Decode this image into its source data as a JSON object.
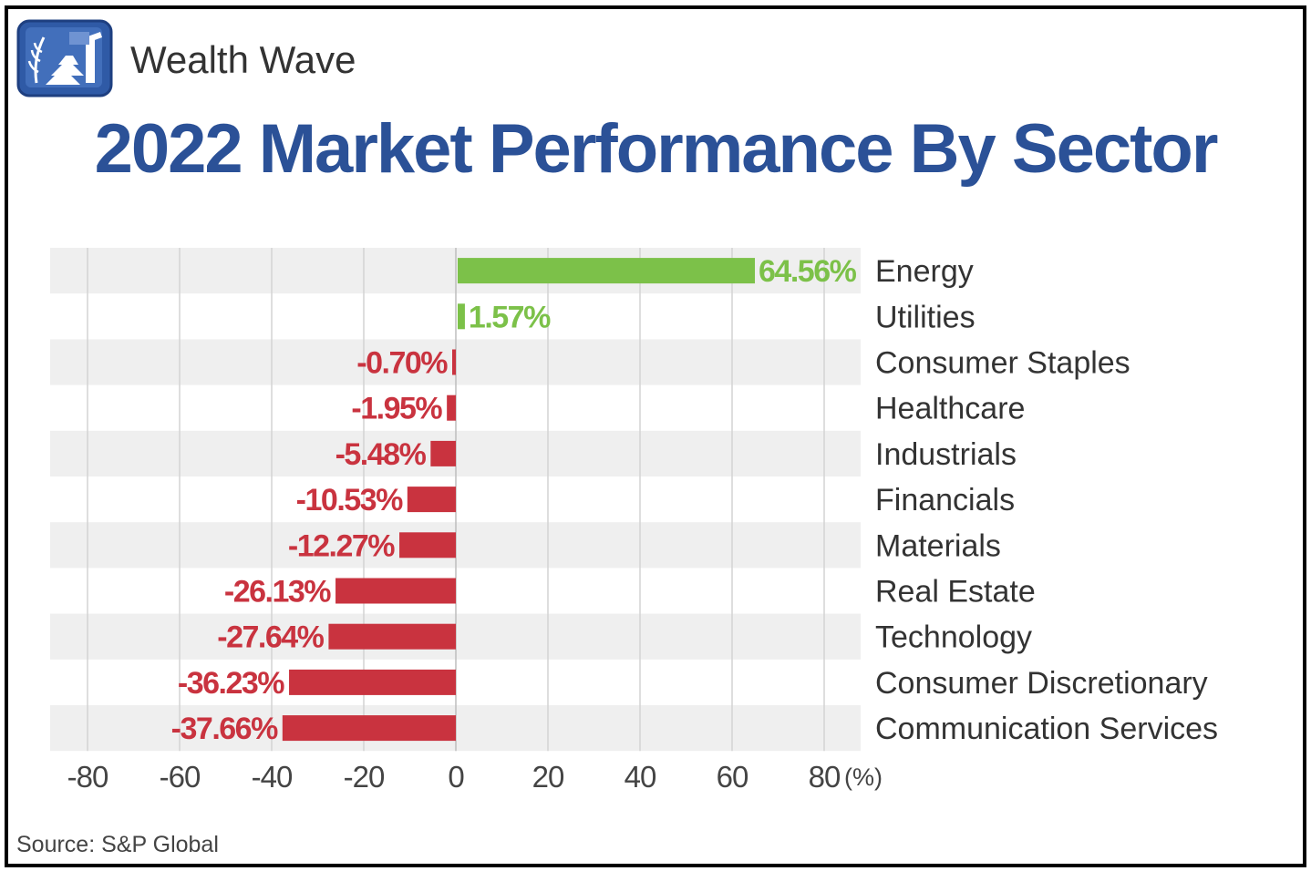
{
  "header": {
    "brand": "Wealth Wave",
    "logo_icon": "wealth-wave-logo-icon",
    "title": "2022 Market Performance By Sector"
  },
  "footer": {
    "source": "Source: S&P Global"
  },
  "colors": {
    "positive": "#7cc149",
    "negative": "#c9333f",
    "title": "#2b5197",
    "stripe": "#efefef",
    "grid": "#d4d4d4"
  },
  "chart_data": {
    "type": "bar",
    "orientation": "horizontal",
    "categories": [
      "Energy",
      "Utilities",
      "Consumer Staples",
      "Healthcare",
      "Industrials",
      "Financials",
      "Materials",
      "Real Estate",
      "Technology",
      "Consumer Discretionary",
      "Communication Services"
    ],
    "values": [
      64.56,
      1.57,
      -0.7,
      -1.95,
      -5.48,
      -10.53,
      -12.27,
      -26.13,
      -27.64,
      -36.23,
      -37.66
    ],
    "data_labels": [
      "64.56%",
      "1.57%",
      "-0.70%",
      "-1.95%",
      "-5.48%",
      "-10.53%",
      "-12.27%",
      "-26.13%",
      "-27.64%",
      "-36.23%",
      "-37.66%"
    ],
    "x_ticks": [
      -80,
      -60,
      -40,
      -20,
      0,
      20,
      40,
      60,
      80
    ],
    "x_tick_labels": [
      "-80",
      "-60",
      "-40",
      "-20",
      "0",
      "20",
      "40",
      "60",
      "80"
    ],
    "x_unit": "(%)",
    "xlim": [
      -88,
      88
    ],
    "grid": true,
    "category_label_position": "right"
  }
}
